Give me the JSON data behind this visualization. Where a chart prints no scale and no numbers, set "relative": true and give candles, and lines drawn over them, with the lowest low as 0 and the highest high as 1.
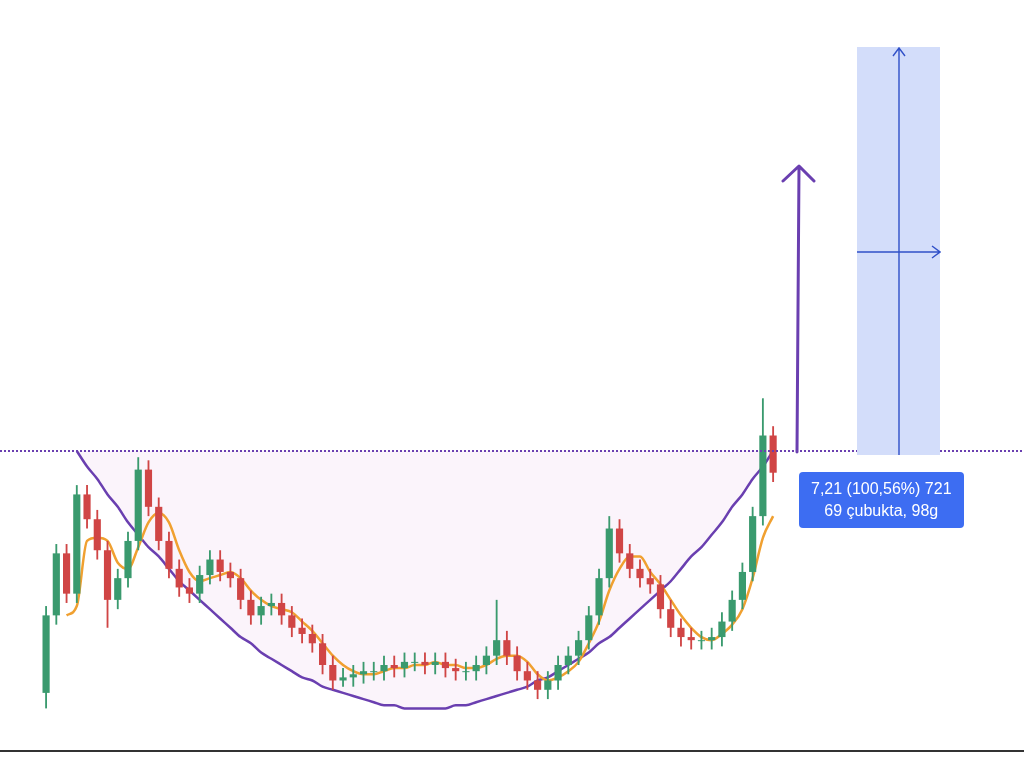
{
  "chart_data": {
    "type": "candlestick",
    "relative": true,
    "categories": [
      null,
      null,
      null,
      null,
      null,
      null,
      null,
      null,
      null,
      null,
      null,
      null,
      null,
      null,
      null,
      null,
      null,
      null,
      null,
      null,
      null,
      null,
      null,
      null,
      null,
      null,
      null,
      null,
      null,
      null,
      null,
      null,
      null,
      null,
      null,
      null,
      null,
      null,
      null,
      null,
      null,
      null,
      null,
      null,
      null,
      null,
      null,
      null,
      null,
      null,
      null,
      null,
      null,
      null,
      null,
      null,
      null,
      null,
      null,
      null,
      null,
      null,
      null,
      null,
      null,
      null,
      null,
      null,
      null,
      null,
      null,
      null,
      null,
      null,
      null,
      null,
      null,
      null,
      null,
      null,
      null,
      null,
      null,
      null,
      null,
      null,
      null,
      null,
      null,
      null,
      null,
      null,
      null,
      null,
      null,
      null,
      null,
      null,
      null,
      null
    ],
    "ohlc": [
      null,
      null,
      null,
      null,
      [
        0.05,
        0.33,
        0,
        0.3
      ],
      [
        0.3,
        0.53,
        0.27,
        0.5
      ],
      [
        0.5,
        0.53,
        0.34,
        0.37
      ],
      [
        0.37,
        0.72,
        0.34,
        0.69
      ],
      [
        0.69,
        0.72,
        0.58,
        0.61
      ],
      [
        0.61,
        0.64,
        0.48,
        0.51
      ],
      [
        0.51,
        0.54,
        0.26,
        0.35
      ],
      [
        0.35,
        0.45,
        0.32,
        0.42
      ],
      [
        0.42,
        0.57,
        0.39,
        0.54
      ],
      [
        0.54,
        0.81,
        0.51,
        0.77
      ],
      [
        0.77,
        0.8,
        0.62,
        0.65
      ],
      [
        0.65,
        0.68,
        0.51,
        0.54
      ],
      [
        0.54,
        0.57,
        0.42,
        0.45
      ],
      [
        0.45,
        0.48,
        0.36,
        0.39
      ],
      [
        0.39,
        0.42,
        0.34,
        0.37
      ],
      [
        0.37,
        0.46,
        0.34,
        0.43
      ],
      [
        0.43,
        0.51,
        0.4,
        0.48
      ],
      [
        0.48,
        0.51,
        0.41,
        0.44
      ],
      [
        0.44,
        0.47,
        0.39,
        0.42
      ],
      [
        0.42,
        0.45,
        0.32,
        0.35
      ],
      [
        0.35,
        0.38,
        0.27,
        0.3
      ],
      [
        0.3,
        0.36,
        0.27,
        0.33
      ],
      [
        0.33,
        0.37,
        0.3,
        0.34
      ],
      [
        0.34,
        0.37,
        0.27,
        0.3
      ],
      [
        0.3,
        0.33,
        0.23,
        0.26
      ],
      [
        0.26,
        0.29,
        0.21,
        0.24
      ],
      [
        0.24,
        0.27,
        0.18,
        0.21
      ],
      [
        0.21,
        0.24,
        0.11,
        0.14
      ],
      [
        0.14,
        0.17,
        0.06,
        0.09
      ],
      [
        0.09,
        0.13,
        0.07,
        0.1
      ],
      [
        0.1,
        0.14,
        0.07,
        0.11
      ],
      [
        0.11,
        0.15,
        0.08,
        0.12
      ],
      [
        0.12,
        0.15,
        0.09,
        0.12
      ],
      [
        0.12,
        0.17,
        0.09,
        0.14
      ],
      [
        0.14,
        0.17,
        0.1,
        0.13
      ],
      [
        0.13,
        0.18,
        0.1,
        0.15
      ],
      [
        0.15,
        0.18,
        0.12,
        0.15
      ],
      [
        0.15,
        0.18,
        0.11,
        0.14
      ],
      [
        0.14,
        0.18,
        0.11,
        0.15
      ],
      [
        0.15,
        0.18,
        0.1,
        0.13
      ],
      [
        0.13,
        0.16,
        0.09,
        0.12
      ],
      [
        0.12,
        0.15,
        0.09,
        0.12
      ],
      [
        0.12,
        0.17,
        0.09,
        0.14
      ],
      [
        0.14,
        0.2,
        0.11,
        0.17
      ],
      [
        0.17,
        0.35,
        0.14,
        0.22
      ],
      [
        0.22,
        0.25,
        0.14,
        0.17
      ],
      [
        0.17,
        0.2,
        0.09,
        0.12
      ],
      [
        0.12,
        0.15,
        0.06,
        0.09
      ],
      [
        0.09,
        0.12,
        0.03,
        0.06
      ],
      [
        0.06,
        0.12,
        0.03,
        0.09
      ],
      [
        0.09,
        0.17,
        0.06,
        0.14
      ],
      [
        0.14,
        0.2,
        0.11,
        0.17
      ],
      [
        0.17,
        0.25,
        0.14,
        0.22
      ],
      [
        0.22,
        0.33,
        0.19,
        0.3
      ],
      [
        0.3,
        0.45,
        0.27,
        0.42
      ],
      [
        0.42,
        0.62,
        0.39,
        0.58
      ],
      [
        0.58,
        0.61,
        0.47,
        0.5
      ],
      [
        0.5,
        0.53,
        0.42,
        0.45
      ],
      [
        0.45,
        0.48,
        0.39,
        0.42
      ],
      [
        0.42,
        0.45,
        0.37,
        0.4
      ],
      [
        0.4,
        0.43,
        0.29,
        0.32
      ],
      [
        0.32,
        0.35,
        0.23,
        0.26
      ],
      [
        0.26,
        0.29,
        0.2,
        0.23
      ],
      [
        0.23,
        0.26,
        0.19,
        0.22
      ],
      [
        0.22,
        0.25,
        0.19,
        0.22
      ],
      [
        0.22,
        0.26,
        0.19,
        0.23
      ],
      [
        0.23,
        0.31,
        0.2,
        0.28
      ],
      [
        0.28,
        0.38,
        0.25,
        0.35
      ],
      [
        0.35,
        0.47,
        0.32,
        0.44
      ],
      [
        0.44,
        0.65,
        0.41,
        0.62
      ],
      [
        0.62,
        1,
        0.59,
        0.88
      ],
      [
        0.88,
        0.91,
        0.73,
        0.76
      ],
      null,
      null,
      null,
      null,
      null,
      null,
      null,
      null,
      null,
      null,
      null,
      null,
      null,
      null,
      null,
      null,
      null,
      null,
      null,
      null,
      null,
      null,
      null,
      null
    ],
    "series": [
      {
        "type": "line",
        "color": "#f0a030",
        "values": [
          null,
          null,
          null,
          null,
          null,
          null,
          0.3,
          0.33,
          0.54,
          0.55,
          0.54,
          0.47,
          0.45,
          0.52,
          0.6,
          0.63,
          0.6,
          0.51,
          0.44,
          0.41,
          0.42,
          0.43,
          0.44,
          0.42,
          0.38,
          0.35,
          0.33,
          0.32,
          0.31,
          0.28,
          0.25,
          0.21,
          0.17,
          0.14,
          0.12,
          0.11,
          0.11,
          0.12,
          0.13,
          0.13,
          0.14,
          0.14,
          0.15,
          0.14,
          0.14,
          0.13,
          0.13,
          0.14,
          0.16,
          0.17,
          0.17,
          0.15,
          0.11,
          0.09,
          0.1,
          0.12,
          0.15,
          0.21,
          0.28,
          0.38,
          0.45,
          0.49,
          0.49,
          0.44,
          0.4,
          0.35,
          0.3,
          0.26,
          0.23,
          0.22,
          0.24,
          0.27,
          0.32,
          0.42,
          0.55,
          0.62,
          null,
          null,
          null,
          null,
          null,
          null,
          null,
          null,
          null,
          null,
          null,
          null,
          null,
          null,
          null,
          null,
          null,
          null,
          null,
          null,
          null,
          null,
          null,
          null
        ]
      },
      {
        "type": "line",
        "color": "#6a3fb0",
        "values": [
          null,
          null,
          null,
          null,
          null,
          null,
          null,
          0.83,
          0.78,
          0.74,
          0.69,
          0.65,
          0.6,
          0.56,
          0.52,
          0.49,
          0.45,
          0.41,
          0.38,
          0.35,
          0.32,
          0.29,
          0.26,
          0.23,
          0.21,
          0.18,
          0.16,
          0.14,
          0.12,
          0.1,
          0.09,
          0.07,
          0.06,
          0.05,
          0.04,
          0.03,
          0.02,
          0.01,
          0.01,
          0,
          0,
          0,
          0,
          0,
          0.01,
          0.01,
          0.02,
          0.03,
          0.04,
          0.05,
          0.06,
          0.07,
          0.09,
          0.1,
          0.12,
          0.14,
          0.16,
          0.18,
          0.21,
          0.23,
          0.26,
          0.29,
          0.32,
          0.35,
          0.38,
          0.41,
          0.45,
          0.49,
          0.52,
          0.56,
          0.6,
          0.65,
          0.69,
          0.74,
          0.78,
          0.83,
          null,
          null,
          null,
          null,
          null,
          null,
          null,
          null,
          null,
          null,
          null,
          null,
          null,
          null,
          null,
          null,
          null,
          null,
          null,
          null,
          null,
          null,
          null,
          null
        ]
      }
    ],
    "ref_lines": [
      {
        "axis": "y",
        "value": 0.83,
        "color": "#6a3fb0",
        "line_style": "dotted"
      }
    ],
    "annotations": [
      "7,21 (100,56%) 721\n69 çubukta, 98g"
    ]
  }
}
